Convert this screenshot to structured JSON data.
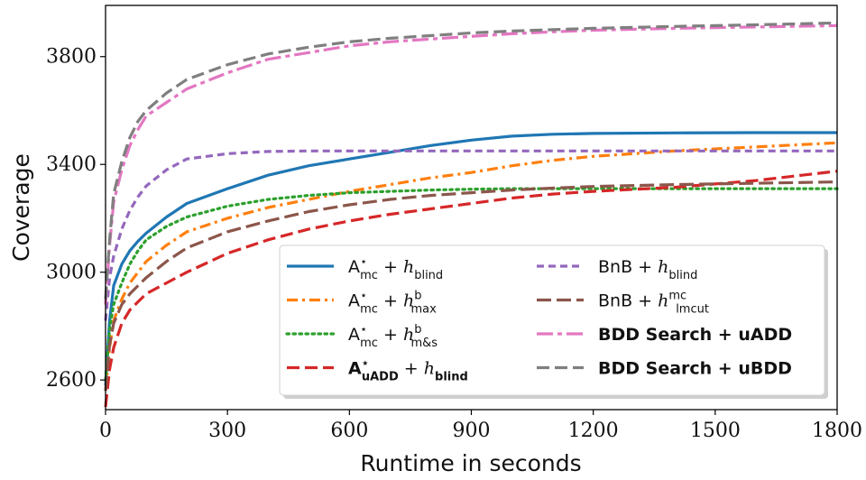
{
  "chart_data": {
    "type": "line",
    "title": "",
    "xlabel": "Runtime in seconds",
    "ylabel": "Coverage",
    "xlim": [
      0,
      1800
    ],
    "ylim": [
      2490,
      3990
    ],
    "xticks": [
      0,
      300,
      600,
      900,
      1200,
      1500,
      1800
    ],
    "xtick_labels": [
      "0",
      "300",
      "600",
      "900",
      "1200",
      "1500",
      "1800"
    ],
    "yticks": [
      2600,
      3000,
      3400,
      3800
    ],
    "ytick_labels": [
      "2600",
      "3000",
      "3400",
      "3800"
    ],
    "grid": false,
    "legend_position": "lower-right",
    "series": [
      {
        "id": "amc-blind",
        "legend": {
          "base": "A",
          "sup": "⋆",
          "sub": "mc",
          "plus": "+",
          "h": "h",
          "hsub": "blind",
          "hsup": ""
        },
        "color": "#1f77b4",
        "dash": "solid",
        "x": [
          0,
          10,
          20,
          40,
          60,
          80,
          100,
          150,
          200,
          300,
          400,
          500,
          600,
          700,
          800,
          900,
          1000,
          1100,
          1200,
          1400,
          1600,
          1800
        ],
        "y": [
          2580,
          2820,
          2950,
          3030,
          3080,
          3115,
          3145,
          3205,
          3255,
          3310,
          3360,
          3395,
          3420,
          3445,
          3470,
          3490,
          3505,
          3512,
          3515,
          3517,
          3518,
          3518
        ]
      },
      {
        "id": "amc-max",
        "legend": {
          "base": "A",
          "sup": "⋆",
          "sub": "mc",
          "plus": "+",
          "h": "h",
          "hsub": "max",
          "hsup": "b"
        },
        "color": "#ff7f0e",
        "dash": "dashdot",
        "x": [
          0,
          10,
          20,
          40,
          60,
          80,
          100,
          150,
          200,
          300,
          400,
          500,
          600,
          700,
          800,
          900,
          1000,
          1100,
          1200,
          1400,
          1600,
          1800
        ],
        "y": [
          2560,
          2720,
          2820,
          2900,
          2960,
          3000,
          3040,
          3100,
          3150,
          3200,
          3240,
          3270,
          3300,
          3325,
          3350,
          3370,
          3395,
          3415,
          3430,
          3450,
          3465,
          3480
        ]
      },
      {
        "id": "amc-ms",
        "legend": {
          "base": "A",
          "sup": "⋆",
          "sub": "mc",
          "plus": "+",
          "h": "h",
          "hsub": "m&s",
          "hsup": "b"
        },
        "color": "#2ca02c",
        "dash": "dotted",
        "x": [
          0,
          10,
          20,
          40,
          60,
          80,
          100,
          150,
          200,
          300,
          400,
          500,
          600,
          700,
          800,
          900,
          1000,
          1100,
          1200,
          1400,
          1600,
          1800
        ],
        "y": [
          2600,
          2790,
          2880,
          2960,
          3030,
          3080,
          3120,
          3170,
          3205,
          3245,
          3270,
          3285,
          3295,
          3300,
          3305,
          3308,
          3310,
          3310,
          3310,
          3310,
          3310,
          3310
        ]
      },
      {
        "id": "auadd-blind",
        "legend": {
          "base": "A",
          "sup": "⋆",
          "sub": "uADD",
          "plus": "+",
          "h": "h",
          "hsub": "blind",
          "hsup": "",
          "bold": true
        },
        "color": "#d62728",
        "dash": "dashed",
        "x": [
          0,
          10,
          20,
          40,
          60,
          80,
          100,
          150,
          200,
          300,
          400,
          500,
          600,
          700,
          800,
          900,
          1000,
          1100,
          1200,
          1400,
          1600,
          1800
        ],
        "y": [
          2500,
          2640,
          2720,
          2810,
          2860,
          2890,
          2920,
          2960,
          3000,
          3070,
          3120,
          3160,
          3190,
          3215,
          3235,
          3255,
          3275,
          3290,
          3300,
          3315,
          3340,
          3375
        ]
      },
      {
        "id": "bnb-blind",
        "legend": {
          "base": "BnB",
          "sup": "",
          "sub": "",
          "plus": "+",
          "h": "h",
          "hsub": "blind",
          "hsup": ""
        },
        "color": "#9467bd",
        "dash": "shortdash",
        "x": [
          0,
          10,
          20,
          40,
          60,
          80,
          100,
          150,
          200,
          300,
          400,
          500,
          600,
          700,
          800,
          900,
          1000,
          1100,
          1200,
          1400,
          1600,
          1800
        ],
        "y": [
          2820,
          2980,
          3060,
          3160,
          3230,
          3280,
          3320,
          3380,
          3420,
          3440,
          3448,
          3450,
          3450,
          3450,
          3450,
          3450,
          3450,
          3450,
          3450,
          3450,
          3450,
          3450
        ]
      },
      {
        "id": "bnb-lmcut",
        "legend": {
          "base": "BnB",
          "sup": "",
          "sub": "",
          "plus": "+",
          "h": "h",
          "hsub": "lmcut",
          "hsup": "mc"
        },
        "color": "#8c564b",
        "dash": "longdash",
        "x": [
          0,
          10,
          20,
          40,
          60,
          80,
          100,
          150,
          200,
          300,
          400,
          500,
          600,
          700,
          800,
          900,
          1000,
          1100,
          1200,
          1400,
          1600,
          1800
        ],
        "y": [
          2560,
          2730,
          2810,
          2880,
          2920,
          2950,
          2980,
          3040,
          3090,
          3150,
          3190,
          3225,
          3250,
          3270,
          3285,
          3295,
          3305,
          3312,
          3318,
          3325,
          3330,
          3335
        ]
      },
      {
        "id": "bdd-uadd",
        "legend": {
          "text": "BDD Search + uADD",
          "bold": true
        },
        "color": "#e377c2",
        "dash": "dashdot2",
        "x": [
          0,
          10,
          20,
          40,
          60,
          80,
          100,
          150,
          200,
          300,
          400,
          500,
          600,
          700,
          800,
          900,
          1000,
          1100,
          1200,
          1400,
          1600,
          1800
        ],
        "y": [
          2880,
          3100,
          3260,
          3380,
          3470,
          3530,
          3580,
          3630,
          3680,
          3740,
          3790,
          3815,
          3840,
          3855,
          3865,
          3875,
          3885,
          3892,
          3898,
          3905,
          3910,
          3915
        ]
      },
      {
        "id": "bdd-ubdd",
        "legend": {
          "text": "BDD Search + uBDD",
          "bold": true
        },
        "color": "#7f7f7f",
        "dash": "dashed",
        "x": [
          0,
          10,
          20,
          40,
          60,
          80,
          100,
          150,
          200,
          300,
          400,
          500,
          600,
          700,
          800,
          900,
          1000,
          1100,
          1200,
          1400,
          1600,
          1800
        ],
        "y": [
          2900,
          3120,
          3290,
          3410,
          3500,
          3560,
          3600,
          3665,
          3715,
          3770,
          3810,
          3835,
          3855,
          3868,
          3878,
          3888,
          3895,
          3900,
          3905,
          3912,
          3918,
          3925
        ]
      }
    ]
  }
}
